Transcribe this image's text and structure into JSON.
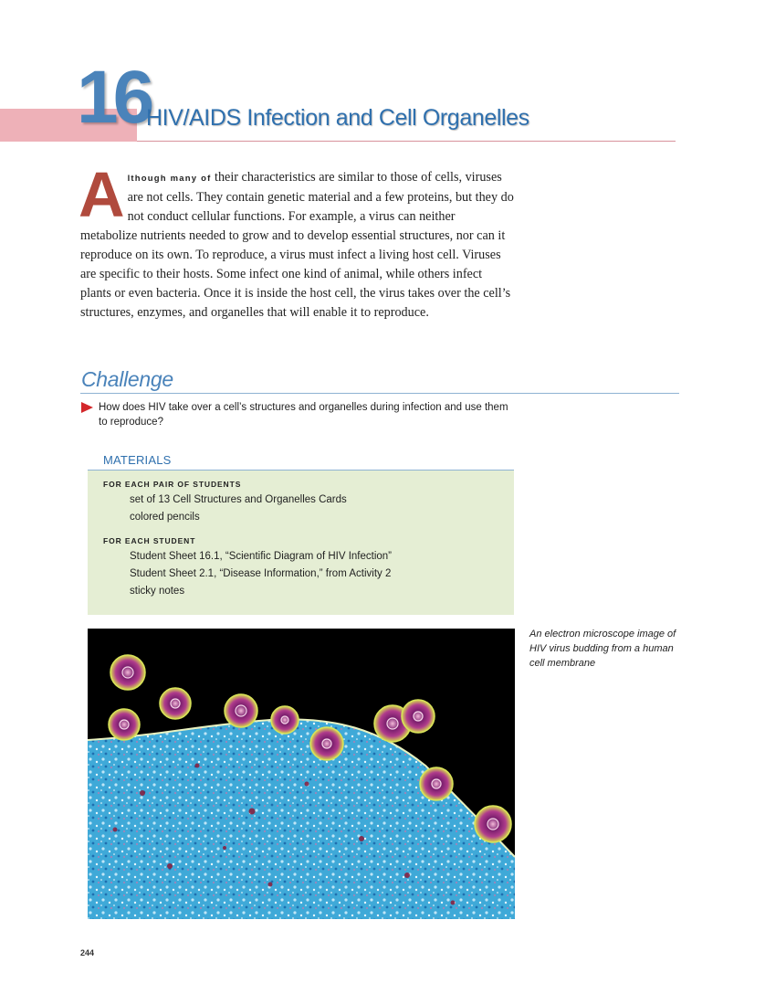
{
  "chapter": {
    "number": "16",
    "title": "HIV/AIDS Infection and Cell Organelles"
  },
  "intro": {
    "dropcap": "A",
    "lead": "lthough many of",
    "text": " their characteristics are similar to those of cells, viruses are not cells. They contain genetic material and a few proteins, but they do not conduct cellular functions. For example, a virus can neither metabolize nutrients needed to grow and to develop essential structures, nor can it reproduce on its own. To reproduce, a virus must infect a living host cell. Viruses are specific to their hosts. Some infect one kind of animal, while others infect plants or even bacteria. Once it is inside the host cell, the virus takes over the cell’s structures, enzymes, and organelles that will enable it to reproduce."
  },
  "challenge": {
    "heading": "Challenge",
    "question": "How does HIV take over a cell’s structures and organelles during infection and use them to reproduce?"
  },
  "materials": {
    "heading": "MATERIALS",
    "groups": [
      {
        "label": "FOR EACH PAIR OF STUDENTS",
        "items": [
          "set of 13 Cell Structures and Organelles Cards",
          "colored pencils"
        ]
      },
      {
        "label": "FOR EACH STUDENT",
        "items": [
          "Student Sheet 16.1, “Scientific Diagram of HIV Infection”",
          "Student Sheet 2.1, “Disease Information,” from Activity 2",
          "sticky notes"
        ]
      }
    ]
  },
  "photo": {
    "caption": "An electron microscope image of HIV virus budding from a human cell membrane"
  },
  "page_number": "244"
}
